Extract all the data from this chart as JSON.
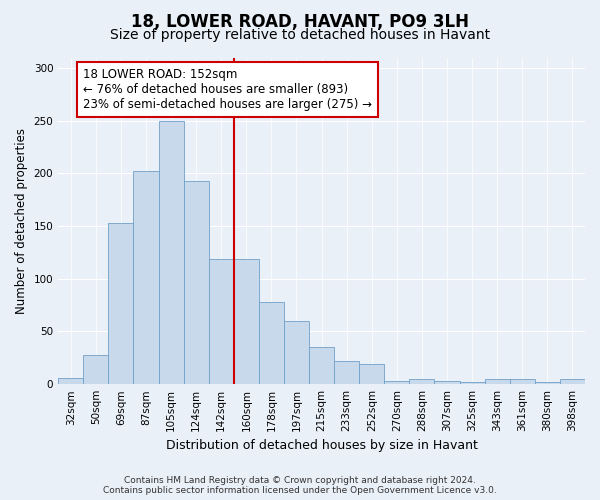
{
  "title": "18, LOWER ROAD, HAVANT, PO9 3LH",
  "subtitle": "Size of property relative to detached houses in Havant",
  "xlabel": "Distribution of detached houses by size in Havant",
  "ylabel": "Number of detached properties",
  "bar_color": "#c9d9ec",
  "bar_edge_color": "#6fa0c8",
  "background_color": "#eaf0f8",
  "categories": [
    "32sqm",
    "50sqm",
    "69sqm",
    "87sqm",
    "105sqm",
    "124sqm",
    "142sqm",
    "160sqm",
    "178sqm",
    "197sqm",
    "215sqm",
    "233sqm",
    "252sqm",
    "270sqm",
    "288sqm",
    "307sqm",
    "325sqm",
    "343sqm",
    "361sqm",
    "380sqm",
    "398sqm"
  ],
  "values": [
    6,
    28,
    153,
    202,
    250,
    193,
    119,
    119,
    78,
    60,
    35,
    22,
    19,
    3,
    5,
    3,
    2,
    5,
    5,
    2,
    5
  ],
  "vline_color": "#cc0000",
  "vline_position": 6.5,
  "annotation_text": "18 LOWER ROAD: 152sqm\n← 76% of detached houses are smaller (893)\n23% of semi-detached houses are larger (275) →",
  "annotation_box_color": "#ffffff",
  "annotation_box_edge_color": "#cc0000",
  "ylim": [
    0,
    310
  ],
  "yticks": [
    0,
    50,
    100,
    150,
    200,
    250,
    300
  ],
  "footer": "Contains HM Land Registry data © Crown copyright and database right 2024.\nContains public sector information licensed under the Open Government Licence v3.0.",
  "title_fontsize": 12,
  "subtitle_fontsize": 10,
  "xlabel_fontsize": 9,
  "ylabel_fontsize": 8.5,
  "tick_fontsize": 7.5,
  "annotation_fontsize": 8.5,
  "footer_fontsize": 6.5
}
